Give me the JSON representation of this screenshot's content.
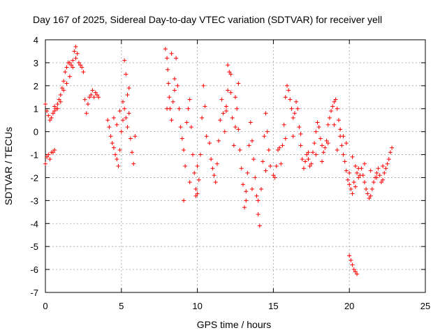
{
  "chart_data": {
    "type": "scatter",
    "title": "Day 167 of 2025, Sidereal Day-to-day VTEC variation (SDTVAR) for receiver yell",
    "xlabel": "GPS time / hours",
    "ylabel": "SDTVAR / TECUs",
    "xlim": [
      0,
      25
    ],
    "ylim": [
      -7,
      4
    ],
    "xticks": [
      "0",
      "5",
      "10",
      "15",
      "20",
      "25"
    ],
    "yticks": [
      "4",
      "3",
      "2",
      "1",
      "0",
      "-1",
      "-2",
      "-3",
      "-4",
      "-5",
      "-6",
      "-7"
    ],
    "grid": true,
    "marker": "+",
    "color": "#ff0000",
    "series": [
      {
        "name": "SDTVAR",
        "points": [
          [
            0.0,
            1.2
          ],
          [
            0.1,
            0.9
          ],
          [
            0.2,
            0.7
          ],
          [
            0.3,
            0.5
          ],
          [
            0.4,
            0.6
          ],
          [
            0.5,
            0.8
          ],
          [
            0.6,
            0.9
          ],
          [
            0.7,
            1.0
          ],
          [
            0.8,
            1.2
          ],
          [
            0.9,
            1.4
          ],
          [
            1.0,
            1.6
          ],
          [
            1.1,
            1.9
          ],
          [
            1.2,
            2.2
          ],
          [
            1.3,
            2.6
          ],
          [
            1.4,
            2.8
          ],
          [
            1.5,
            3.0
          ],
          [
            1.6,
            3.0
          ],
          [
            1.7,
            2.9
          ],
          [
            1.8,
            3.1
          ],
          [
            1.9,
            3.5
          ],
          [
            2.0,
            3.7
          ],
          [
            2.1,
            3.4
          ],
          [
            2.2,
            3.0
          ],
          [
            2.3,
            2.9
          ],
          [
            2.4,
            2.8
          ],
          [
            2.5,
            2.6
          ],
          [
            2.6,
            1.4
          ],
          [
            2.7,
            0.8
          ],
          [
            2.8,
            1.2
          ],
          [
            2.9,
            1.5
          ],
          [
            3.0,
            1.6
          ],
          [
            3.1,
            1.8
          ],
          [
            3.2,
            1.5
          ],
          [
            3.3,
            1.7
          ],
          [
            3.4,
            1.6
          ],
          [
            3.5,
            1.5
          ],
          [
            0.0,
            -1.4
          ],
          [
            0.1,
            -1.1
          ],
          [
            0.2,
            -1.0
          ],
          [
            0.3,
            -1.2
          ],
          [
            0.4,
            -0.9
          ],
          [
            0.5,
            -0.9
          ],
          [
            0.6,
            -0.8
          ],
          [
            0.6,
            1.1
          ],
          [
            0.8,
            1.0
          ],
          [
            1.0,
            1.3
          ],
          [
            1.2,
            1.8
          ],
          [
            1.4,
            2.1
          ],
          [
            1.6,
            2.4
          ],
          [
            1.8,
            2.8
          ],
          [
            2.0,
            3.2
          ],
          [
            4.1,
            0.5
          ],
          [
            4.2,
            0.2
          ],
          [
            4.3,
            -0.2
          ],
          [
            4.4,
            -0.5
          ],
          [
            4.5,
            -0.7
          ],
          [
            4.6,
            -1.0
          ],
          [
            4.7,
            -1.2
          ],
          [
            4.8,
            -1.5
          ],
          [
            4.9,
            -0.8
          ],
          [
            5.0,
            0.0
          ],
          [
            5.1,
            0.5
          ],
          [
            5.2,
            1.0
          ],
          [
            5.3,
            0.6
          ],
          [
            5.4,
            0.2
          ],
          [
            5.5,
            0.8
          ],
          [
            5.6,
            -0.3
          ],
          [
            5.7,
            -0.9
          ],
          [
            5.8,
            -1.4
          ],
          [
            5.9,
            -0.2
          ],
          [
            5.2,
            3.1
          ],
          [
            5.3,
            2.5
          ],
          [
            5.1,
            1.3
          ],
          [
            5.4,
            1.6
          ],
          [
            5.5,
            1.9
          ],
          [
            4.5,
            0.6
          ],
          [
            4.7,
            0.3
          ],
          [
            4.9,
            0.9
          ],
          [
            7.9,
            3.6
          ],
          [
            8.0,
            3.2
          ],
          [
            8.05,
            2.7
          ],
          [
            8.1,
            2.1
          ],
          [
            8.15,
            1.5
          ],
          [
            8.2,
            1.0
          ],
          [
            8.3,
            0.5
          ],
          [
            8.4,
            1.3
          ],
          [
            8.5,
            2.3
          ],
          [
            8.6,
            3.2
          ],
          [
            8.7,
            2.0
          ],
          [
            8.8,
            1.0
          ],
          [
            8.9,
            0.2
          ],
          [
            9.0,
            -0.3
          ],
          [
            9.1,
            -0.8
          ],
          [
            9.2,
            -1.5
          ],
          [
            9.3,
            0.4
          ],
          [
            9.4,
            1.0
          ],
          [
            9.5,
            1.4
          ],
          [
            9.6,
            0.2
          ],
          [
            9.7,
            -1.0
          ],
          [
            9.8,
            -1.8
          ],
          [
            9.9,
            -2.5
          ],
          [
            10.0,
            -2.7
          ],
          [
            10.1,
            -2.1
          ],
          [
            10.2,
            -1.0
          ],
          [
            10.3,
            0.6
          ],
          [
            10.4,
            2.0
          ],
          [
            10.5,
            1.1
          ],
          [
            10.6,
            -0.2
          ],
          [
            9.1,
            -3.0
          ],
          [
            9.5,
            -2.2
          ],
          [
            10.0,
            -1.5
          ],
          [
            8.5,
            1.8
          ],
          [
            8.0,
            1.0
          ],
          [
            9.9,
            -2.8
          ],
          [
            8.3,
            3.4
          ],
          [
            10.8,
            -0.5
          ],
          [
            10.9,
            -1.2
          ],
          [
            11.0,
            -1.6
          ],
          [
            11.1,
            -1.9
          ],
          [
            11.2,
            -2.2
          ],
          [
            11.3,
            -1.4
          ],
          [
            11.4,
            -0.4
          ],
          [
            11.5,
            0.5
          ],
          [
            11.6,
            1.4
          ],
          [
            11.7,
            0.8
          ],
          [
            11.8,
            0.0
          ],
          [
            11.9,
            0.9
          ],
          [
            12.0,
            1.8
          ],
          [
            12.1,
            2.6
          ],
          [
            12.2,
            1.7
          ],
          [
            12.3,
            0.6
          ],
          [
            12.4,
            -0.6
          ],
          [
            12.5,
            0.2
          ],
          [
            12.6,
            1.0
          ],
          [
            12.7,
            0.1
          ],
          [
            12.8,
            -0.8
          ],
          [
            12.9,
            -1.6
          ],
          [
            13.0,
            -2.3
          ],
          [
            13.1,
            -3.3
          ],
          [
            13.2,
            -2.6
          ],
          [
            13.3,
            -1.8
          ],
          [
            13.4,
            -0.6
          ],
          [
            13.5,
            0.4
          ],
          [
            13.6,
            -0.4
          ],
          [
            13.7,
            -1.2
          ],
          [
            13.8,
            -2.0
          ],
          [
            13.9,
            -2.8
          ],
          [
            14.0,
            -3.6
          ],
          [
            14.1,
            -4.1
          ],
          [
            14.2,
            -2.5
          ],
          [
            14.3,
            -1.3
          ],
          [
            14.4,
            -0.2
          ],
          [
            14.5,
            0.8
          ],
          [
            14.6,
            0.0
          ],
          [
            14.7,
            -0.8
          ],
          [
            14.8,
            -1.5
          ],
          [
            12.0,
            2.9
          ],
          [
            12.2,
            2.5
          ],
          [
            13.2,
            -3.0
          ],
          [
            14.0,
            -3.0
          ],
          [
            12.5,
            1.5
          ],
          [
            11.9,
            1.1
          ],
          [
            12.7,
            2.1
          ],
          [
            13.6,
            -2.5
          ],
          [
            14.5,
            -1.7
          ],
          [
            15.0,
            -1.9
          ],
          [
            15.1,
            -2.0
          ],
          [
            15.2,
            -1.5
          ],
          [
            15.3,
            -0.8
          ],
          [
            15.4,
            -0.7
          ],
          [
            15.5,
            -1.4
          ],
          [
            15.6,
            -0.6
          ],
          [
            15.7,
            0.3
          ],
          [
            15.8,
            1.5
          ],
          [
            15.9,
            2.0
          ],
          [
            16.0,
            1.8
          ],
          [
            16.1,
            1.4
          ],
          [
            16.2,
            1.0
          ],
          [
            16.3,
            0.6
          ],
          [
            16.4,
            0.8
          ],
          [
            16.5,
            1.3
          ],
          [
            16.6,
            1.0
          ],
          [
            16.7,
            0.2
          ],
          [
            16.8,
            -0.6
          ],
          [
            16.9,
            -1.2
          ],
          [
            17.0,
            -1.6
          ],
          [
            17.1,
            -1.3
          ],
          [
            17.2,
            -1.0
          ],
          [
            17.3,
            -1.2
          ],
          [
            17.4,
            -1.5
          ],
          [
            17.5,
            -1.4
          ],
          [
            17.6,
            -0.9
          ],
          [
            17.7,
            -0.5
          ],
          [
            17.8,
            0.0
          ],
          [
            17.9,
            0.4
          ],
          [
            18.0,
            0.2
          ],
          [
            18.1,
            -0.3
          ],
          [
            18.2,
            -0.6
          ],
          [
            18.3,
            -0.9
          ],
          [
            18.4,
            -0.7
          ],
          [
            18.5,
            -0.4
          ],
          [
            18.6,
            0.3
          ],
          [
            18.7,
            0.6
          ],
          [
            18.8,
            0.9
          ],
          [
            18.9,
            1.1
          ],
          [
            19.0,
            1.3
          ],
          [
            19.1,
            1.4
          ],
          [
            19.2,
            1.0
          ],
          [
            19.3,
            0.5
          ],
          [
            19.4,
            -0.2
          ],
          [
            19.5,
            -0.6
          ],
          [
            19.6,
            -1.0
          ],
          [
            19.7,
            -1.3
          ],
          [
            19.8,
            -1.7
          ],
          [
            19.9,
            -2.1
          ],
          [
            20.0,
            -2.3
          ],
          [
            20.1,
            -2.5
          ],
          [
            20.2,
            -2.7
          ],
          [
            20.3,
            -2.2
          ],
          [
            20.4,
            -1.5
          ],
          [
            20.5,
            -1.8
          ],
          [
            20.6,
            -2.0
          ],
          [
            20.7,
            -1.9
          ],
          [
            20.8,
            -1.6
          ],
          [
            20.9,
            -1.9
          ],
          [
            21.0,
            -2.2
          ],
          [
            21.1,
            -2.5
          ],
          [
            21.2,
            -2.7
          ],
          [
            21.3,
            -2.9
          ],
          [
            21.4,
            -2.8
          ],
          [
            21.5,
            -2.5
          ],
          [
            21.6,
            -2.2
          ],
          [
            21.7,
            -2.0
          ],
          [
            21.8,
            -1.8
          ],
          [
            21.9,
            -1.6
          ],
          [
            22.0,
            -1.9
          ],
          [
            22.1,
            -2.2
          ],
          [
            22.2,
            -2.1
          ],
          [
            22.3,
            -1.8
          ],
          [
            22.4,
            -1.6
          ],
          [
            22.5,
            -1.4
          ],
          [
            22.6,
            -1.2
          ],
          [
            22.7,
            -0.9
          ],
          [
            22.8,
            -0.7
          ],
          [
            15.8,
            -0.3
          ],
          [
            16.3,
            -0.2
          ],
          [
            16.8,
            -0.1
          ],
          [
            17.3,
            -0.9
          ],
          [
            17.8,
            -1.0
          ],
          [
            18.2,
            -1.3
          ],
          [
            18.6,
            -0.5
          ],
          [
            19.0,
            0.3
          ],
          [
            19.4,
            0.1
          ],
          [
            19.8,
            -0.5
          ],
          [
            20.2,
            -1.1
          ],
          [
            20.6,
            -1.6
          ],
          [
            21.0,
            -1.4
          ],
          [
            21.4,
            -1.7
          ],
          [
            21.8,
            -2.0
          ],
          [
            22.2,
            -1.5
          ],
          [
            19.2,
            -0.8
          ],
          [
            19.6,
            -0.2
          ],
          [
            20.0,
            -1.8
          ],
          [
            20.4,
            -2.4
          ],
          [
            20.0,
            -5.4
          ],
          [
            20.1,
            -5.6
          ],
          [
            20.2,
            -5.8
          ],
          [
            20.3,
            -6.0
          ],
          [
            20.4,
            -6.1
          ],
          [
            20.5,
            -6.2
          ]
        ]
      }
    ]
  }
}
